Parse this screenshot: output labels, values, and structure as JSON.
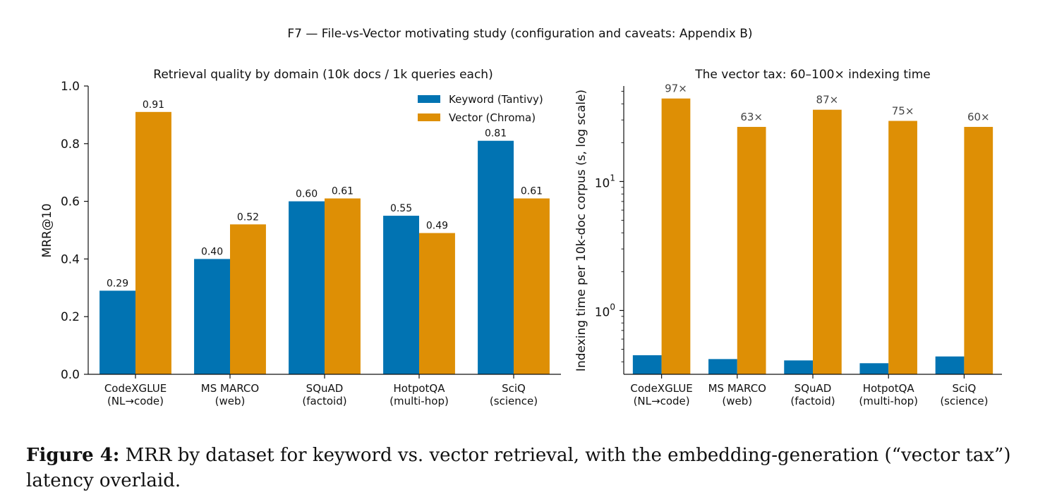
{
  "suptitle": "F7 — File-vs-Vector motivating study (configuration and caveats: Appendix B)",
  "caption": {
    "label": "Figure 4:",
    "text": "MRR by dataset for keyword vs. vector retrieval, with the embedding-generation (“vector tax”) latency overlaid."
  },
  "colors": {
    "keyword": "#0173b2",
    "vector": "#de8f05"
  },
  "chart_data": [
    {
      "type": "bar",
      "title": "Retrieval quality by domain (10k docs / 1k queries each)",
      "xlabel": "",
      "ylabel": "MRR@10",
      "ylim": [
        0,
        1.0
      ],
      "yticks": [
        "0.0",
        "0.2",
        "0.4",
        "0.6",
        "0.8",
        "1.0"
      ],
      "categories": [
        "CodeXGLUE\n(NL→code)",
        "MS MARCO\n(web)",
        "SQuAD\n(factoid)",
        "HotpotQA\n(multi-hop)",
        "SciQ\n(science)"
      ],
      "series": [
        {
          "name": "Keyword (Tantivy)",
          "values": [
            0.29,
            0.4,
            0.6,
            0.55,
            0.81
          ],
          "labels": [
            "0.29",
            "0.40",
            "0.60",
            "0.55",
            "0.81"
          ]
        },
        {
          "name": "Vector (Chroma)",
          "values": [
            0.91,
            0.52,
            0.61,
            0.49,
            0.61
          ],
          "labels": [
            "0.91",
            "0.52",
            "0.61",
            "0.49",
            "0.61"
          ]
        }
      ],
      "legend": "top-right",
      "grid": false
    },
    {
      "type": "bar",
      "title": "The vector tax: 60–100× indexing time",
      "xlabel": "",
      "ylabel": "Indexing time per 10k-doc corpus (s, log scale)",
      "yscale": "log",
      "ylim": [
        0.32,
        55
      ],
      "yticks": [
        {
          "value": 1,
          "base": "10",
          "exp": "0"
        },
        {
          "value": 10,
          "base": "10",
          "exp": "1"
        }
      ],
      "categories": [
        "CodeXGLUE\n(NL→code)",
        "MS MARCO\n(web)",
        "SQuAD\n(factoid)",
        "HotpotQA\n(multi-hop)",
        "SciQ\n(science)"
      ],
      "series": [
        {
          "name": "Keyword (Tantivy)",
          "values": [
            0.45,
            0.42,
            0.41,
            0.39,
            0.44
          ]
        },
        {
          "name": "Vector (Chroma)",
          "values": [
            44,
            26.5,
            36,
            29.5,
            26.5
          ]
        }
      ],
      "ratio_labels": [
        "97×",
        "63×",
        "87×",
        "75×",
        "60×"
      ],
      "grid": false
    }
  ]
}
